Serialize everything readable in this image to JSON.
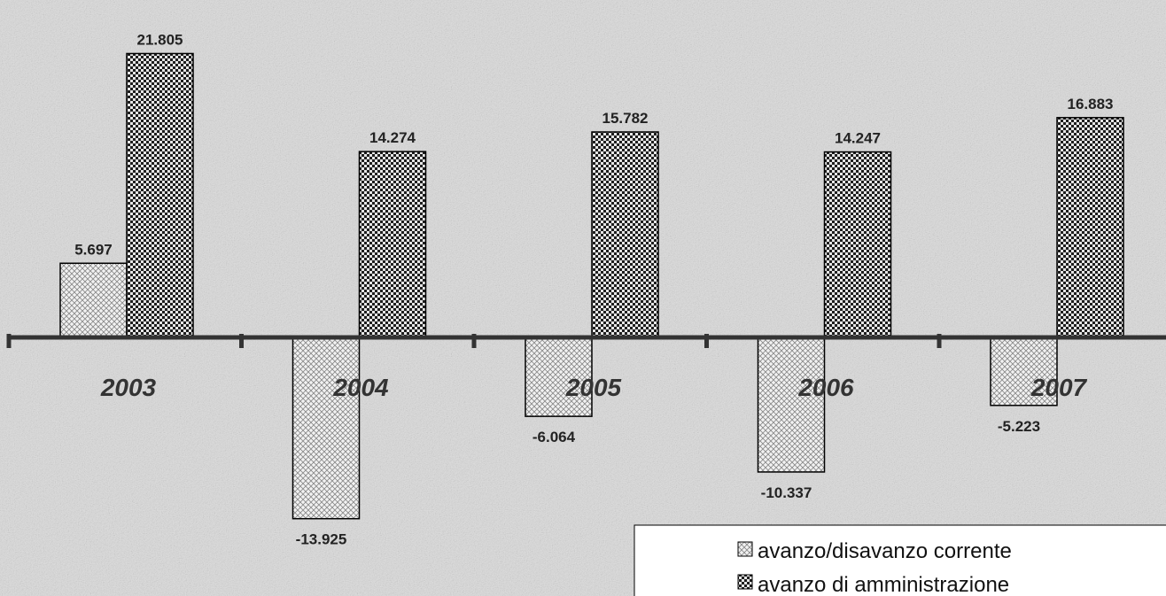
{
  "chart_data": {
    "type": "bar",
    "categories": [
      "2003",
      "2004",
      "2005",
      "2006",
      "2007"
    ],
    "series": [
      {
        "name": "avanzo/disavanzo corrente",
        "values": [
          5.697,
          -13.925,
          -6.064,
          -10.337,
          -5.223
        ],
        "labels": [
          "5.697",
          "-13.925",
          "-6.064",
          "-10.337",
          "-5.223"
        ],
        "pattern": "light-crosshatch"
      },
      {
        "name": "avanzo di amministrazione",
        "values": [
          21.805,
          14.274,
          15.782,
          14.247,
          16.883
        ],
        "labels": [
          "21.805",
          "14.274",
          "15.782",
          "14.247",
          "16.883"
        ],
        "pattern": "dark-checker"
      }
    ],
    "title": "",
    "xlabel": "",
    "ylabel": "",
    "grid": false,
    "legend_position": "bottom-right",
    "colors": {
      "background": "#dcdcdc",
      "bar_stroke": "#000000",
      "axis": "#333333",
      "pattern_light": "#888888",
      "pattern_dark": "#222222"
    }
  }
}
